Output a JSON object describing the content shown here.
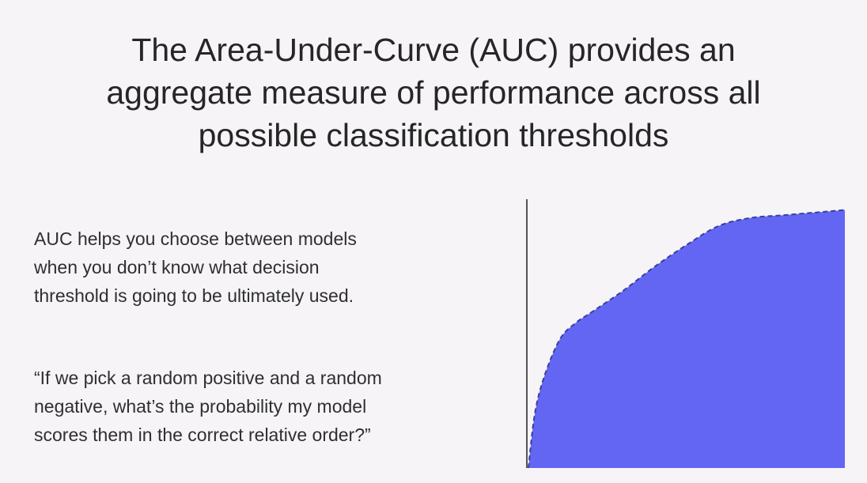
{
  "title": {
    "lines": [
      "The Area-Under-Curve (AUC) provides an",
      "aggregate measure of performance across all",
      "possible classification thresholds"
    ]
  },
  "paragraph1": {
    "lines": [
      "AUC helps you choose between models",
      "when you don’t know what decision",
      "threshold is going to be ultimately used."
    ]
  },
  "paragraph2": {
    "lines": [
      "“If we pick a random positive and a random",
      "negative, what’s the probability my model",
      "scores them in the correct relative order?”"
    ]
  },
  "colors": {
    "background": "#f6f4f7",
    "area_fill": "#6366f3",
    "curve_stroke": "#3a3f9a",
    "axis": "#555555"
  },
  "chart_data": {
    "type": "area",
    "x": [
      0,
      0.02,
      0.05,
      0.1,
      0.15,
      0.2,
      0.3,
      0.4,
      0.5,
      0.6,
      0.7,
      0.8,
      0.9,
      1.0
    ],
    "y": [
      0,
      0.2,
      0.34,
      0.48,
      0.54,
      0.58,
      0.66,
      0.75,
      0.83,
      0.9,
      0.93,
      0.94,
      0.95,
      0.96
    ],
    "xlim": [
      0,
      1
    ],
    "ylim": [
      0,
      1
    ],
    "line_style": "dashed",
    "grid": false
  }
}
